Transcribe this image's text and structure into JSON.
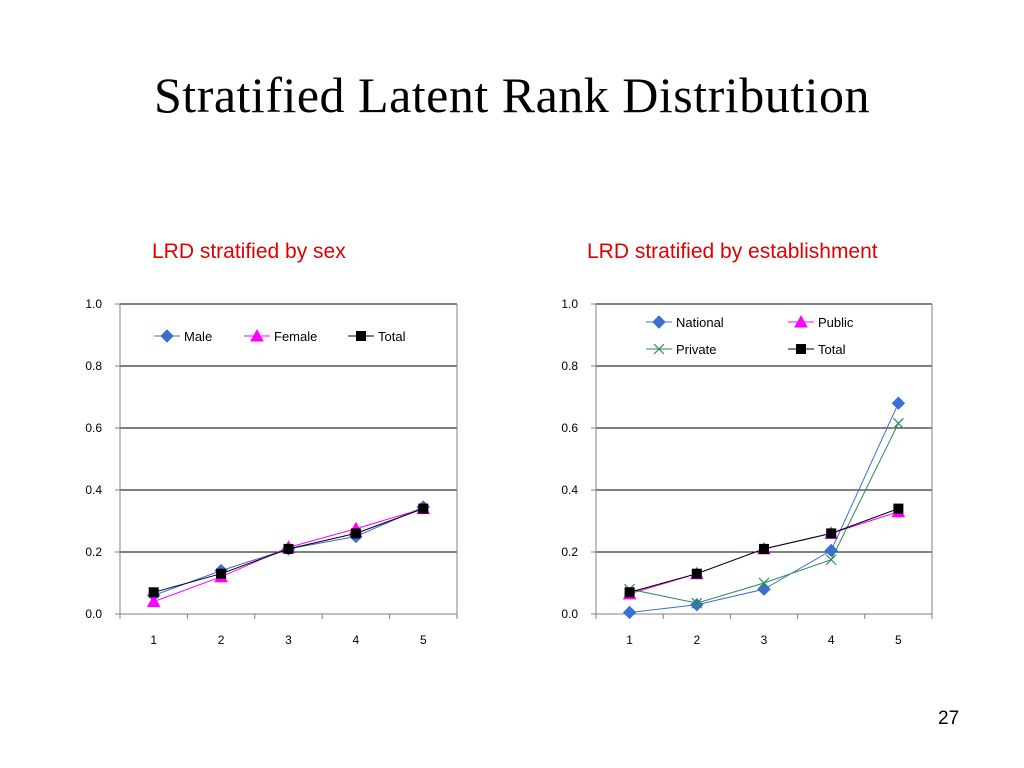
{
  "slide": {
    "title": "Stratified Latent Rank Distribution",
    "page_number": "27"
  },
  "chart_data": [
    {
      "type": "line",
      "title": "LRD stratified by sex",
      "title_color": "#e00000",
      "x": [
        "1",
        "2",
        "3",
        "4",
        "5"
      ],
      "ylim": [
        0.0,
        1.0
      ],
      "yticks": [
        "0.0",
        "0.2",
        "0.4",
        "0.6",
        "0.8",
        "1.0"
      ],
      "grid": true,
      "legend": "top",
      "series": [
        {
          "name": "Male",
          "values": [
            0.06,
            0.14,
            0.21,
            0.25,
            0.345
          ],
          "color": "#3b6fd4",
          "marker": "diamond"
        },
        {
          "name": "Female",
          "values": [
            0.04,
            0.12,
            0.215,
            0.275,
            0.34
          ],
          "color": "#ff00ff",
          "marker": "triangle"
        },
        {
          "name": "Total",
          "values": [
            0.07,
            0.13,
            0.21,
            0.26,
            0.34
          ],
          "color": "#000000",
          "marker": "square"
        }
      ]
    },
    {
      "type": "line",
      "title": "LRD stratified by establishment",
      "title_color": "#e00000",
      "x": [
        "1",
        "2",
        "3",
        "4",
        "5"
      ],
      "ylim": [
        0.0,
        1.0
      ],
      "yticks": [
        "0.0",
        "0.2",
        "0.4",
        "0.6",
        "0.8",
        "1.0"
      ],
      "grid": true,
      "legend": "top",
      "series": [
        {
          "name": "National",
          "values": [
            0.005,
            0.03,
            0.08,
            0.205,
            0.68
          ],
          "color": "#3b6fd4",
          "marker": "diamond"
        },
        {
          "name": "Public",
          "values": [
            0.065,
            0.13,
            0.21,
            0.26,
            0.33
          ],
          "color": "#ff00ff",
          "marker": "triangle"
        },
        {
          "name": "Private",
          "values": [
            0.08,
            0.035,
            0.1,
            0.175,
            0.615
          ],
          "color": "#2e8b57",
          "marker": "x"
        },
        {
          "name": "Total",
          "values": [
            0.07,
            0.13,
            0.21,
            0.26,
            0.34
          ],
          "color": "#000000",
          "marker": "square"
        }
      ]
    }
  ]
}
